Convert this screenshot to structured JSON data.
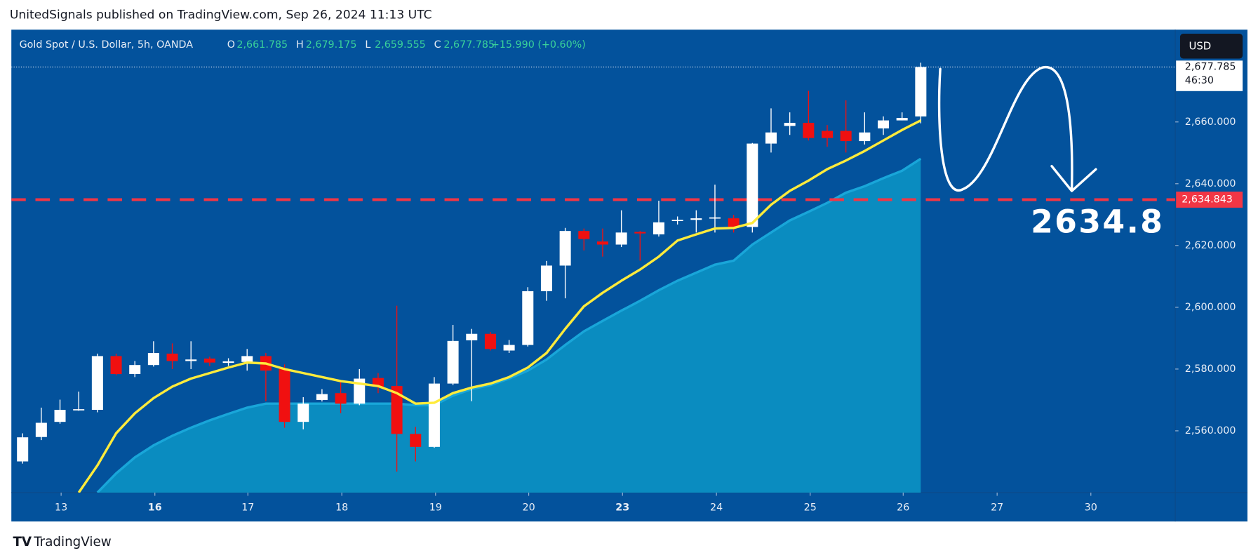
{
  "header": {
    "text": "UnitedSignals published on TradingView.com, Sep 26, 2024 11:13 UTC"
  },
  "legend": {
    "symbol": "Gold Spot / U.S. Dollar, 5h, OANDA",
    "fields": [
      {
        "key": "O",
        "value": "2,661.785"
      },
      {
        "key": "H",
        "value": "2,679.175"
      },
      {
        "key": "L",
        "value": "2,659.555"
      },
      {
        "key": "C",
        "value": "2,677.785"
      }
    ],
    "change": "+15.990 (+0.60%)"
  },
  "currency": "USD",
  "footer": {
    "brand": "TradingView"
  },
  "chart_data": {
    "type": "candlestick",
    "up_color": "#ffffff",
    "down_color": "#f01010",
    "open": [
      2550.1,
      2558,
      2562.9,
      2567,
      2566.8,
      2584.2,
      2578.4,
      2581.3,
      2585,
      2582.6,
      2583.4,
      2582,
      2582.3,
      2584.2,
      2580,
      2562.9,
      2570,
      2572.2,
      2568.8,
      2577.1,
      2574.5,
      2559,
      2554.8,
      2575.3,
      2589.3,
      2591.4,
      2586,
      2587.8,
      2605.2,
      2613.5,
      2624.7,
      2621.3,
      2620.3,
      2624.4,
      2623.6,
      2628,
      2628.3,
      2628.8,
      2628.8,
      2626,
      2653,
      2658.7,
      2659.7,
      2657.1,
      2657.1,
      2653.8,
      2657.9,
      2660.5,
      2661.785
    ],
    "high": [
      2559.2,
      2567.5,
      2570.1,
      2572.7,
      2585,
      2585,
      2582.6,
      2589,
      2588.3,
      2589,
      2584,
      2583.5,
      2586.5,
      2585.2,
      2581.5,
      2570.9,
      2573.5,
      2576.1,
      2580,
      2578.7,
      2600.5,
      2561.3,
      2577.4,
      2594.3,
      2593,
      2592,
      2589.4,
      2606.5,
      2615,
      2625.7,
      2625.5,
      2625.5,
      2631.4,
      2624.7,
      2634.5,
      2629.4,
      2631.4,
      2639.7,
      2629.9,
      2653.2,
      2664.4,
      2663.1,
      2670.1,
      2659,
      2667,
      2663.1,
      2661.8,
      2663.1,
      2679.175
    ],
    "low": [
      2549.4,
      2557,
      2562.3,
      2566.5,
      2566,
      2578,
      2577.4,
      2580.8,
      2580,
      2580,
      2581,
      2581,
      2579.5,
      2569.6,
      2561,
      2560.5,
      2569.5,
      2565.7,
      2568.3,
      2572.2,
      2546.8,
      2550.1,
      2554.5,
      2574.8,
      2569.6,
      2586,
      2585.2,
      2587.3,
      2602.1,
      2602.9,
      2618.4,
      2616.4,
      2619.5,
      2615.1,
      2622.9,
      2626.8,
      2624.2,
      2624.2,
      2624.2,
      2624.2,
      2650.1,
      2655.8,
      2654,
      2652,
      2650.1,
      2652.7,
      2655.8,
      2660.5,
      2659.555
    ],
    "close": [
      2557.9,
      2562.6,
      2566.8,
      2567,
      2584.2,
      2578.4,
      2581.3,
      2585.2,
      2582.6,
      2583.1,
      2582.1,
      2582.5,
      2584.2,
      2579.5,
      2562.9,
      2568.8,
      2571.9,
      2568.8,
      2576.9,
      2574.3,
      2559,
      2554.8,
      2575.3,
      2589.1,
      2591.4,
      2586.5,
      2587.8,
      2605.2,
      2613.5,
      2624.7,
      2622.1,
      2620.3,
      2624.2,
      2623.9,
      2627.5,
      2628.3,
      2628.8,
      2629.1,
      2626,
      2653,
      2656.6,
      2659.7,
      2654.8,
      2654.8,
      2653.8,
      2656.6,
      2660.5,
      2661.3,
      2677.785
    ],
    "ma_line": {
      "color": "#ffeb3b",
      "values": [
        null,
        null,
        null,
        2540,
        2548.8,
        2559.2,
        2565.7,
        2570.6,
        2574.3,
        2576.9,
        2578.7,
        2580.5,
        2582.1,
        2581.8,
        2580,
        2578.7,
        2577.4,
        2576.1,
        2575.3,
        2574.5,
        2572.2,
        2568.8,
        2569.1,
        2572.2,
        2574,
        2575.3,
        2577.4,
        2580.5,
        2585.2,
        2593,
        2600.3,
        2604.7,
        2608.6,
        2612.2,
        2616.4,
        2621.6,
        2623.6,
        2625.5,
        2625.7,
        2627.3,
        2633.2,
        2637.7,
        2641,
        2644.7,
        2647.5,
        2650.6,
        2654,
        2657.4,
        2660.5
      ]
    },
    "area": {
      "color": "#0a8cc0",
      "line_color": "#19a6d9",
      "values": [
        null,
        null,
        null,
        null,
        2540,
        2546.2,
        2551.4,
        2555.3,
        2558.4,
        2561,
        2563.4,
        2565.5,
        2567.5,
        2568.8,
        2568.8,
        2568.8,
        2568.8,
        2568.8,
        2568.8,
        2568.8,
        2568.8,
        2568.3,
        2568.3,
        2571.4,
        2573.5,
        2574.8,
        2576.9,
        2579.5,
        2583.1,
        2587.8,
        2592.2,
        2595.6,
        2598.9,
        2602.1,
        2605.5,
        2608.6,
        2611.2,
        2613.8,
        2615.1,
        2620.3,
        2624.2,
        2628.1,
        2630.9,
        2633.8,
        2637.1,
        2639.2,
        2641.8,
        2644.2,
        2648.1
      ]
    },
    "level": {
      "value": 2634.843,
      "label": "2,634.843",
      "color": "#f23645"
    },
    "last_price": {
      "label": "2,677.785",
      "countdown": "46:30"
    },
    "annotation": "2634.8",
    "xlim": [
      -0.6,
      61.6
    ],
    "xticks": [
      {
        "value": 2.06,
        "label": "13"
      },
      {
        "value": 7.07,
        "label": "16",
        "bold": true
      },
      {
        "value": 12.04,
        "label": "17"
      },
      {
        "value": 17.06,
        "label": "18"
      },
      {
        "value": 22.07,
        "label": "19"
      },
      {
        "value": 27.05,
        "label": "20"
      },
      {
        "value": 32.06,
        "label": "23",
        "bold": true
      },
      {
        "value": 37.08,
        "label": "24"
      },
      {
        "value": 42.09,
        "label": "25"
      },
      {
        "value": 47.06,
        "label": "26"
      },
      {
        "value": 52.08,
        "label": "27"
      },
      {
        "value": 57.09,
        "label": "30"
      }
    ],
    "ylim": [
      2540,
      2689.87
    ],
    "yticks": [
      {
        "value": 2560,
        "label": "2,560.000"
      },
      {
        "value": 2580,
        "label": "2,580.000"
      },
      {
        "value": 2600,
        "label": "2,600.000"
      },
      {
        "value": 2620,
        "label": "2,620.000"
      },
      {
        "value": 2640,
        "label": "2,640.000"
      },
      {
        "value": 2660,
        "label": "2,660.000"
      }
    ]
  }
}
